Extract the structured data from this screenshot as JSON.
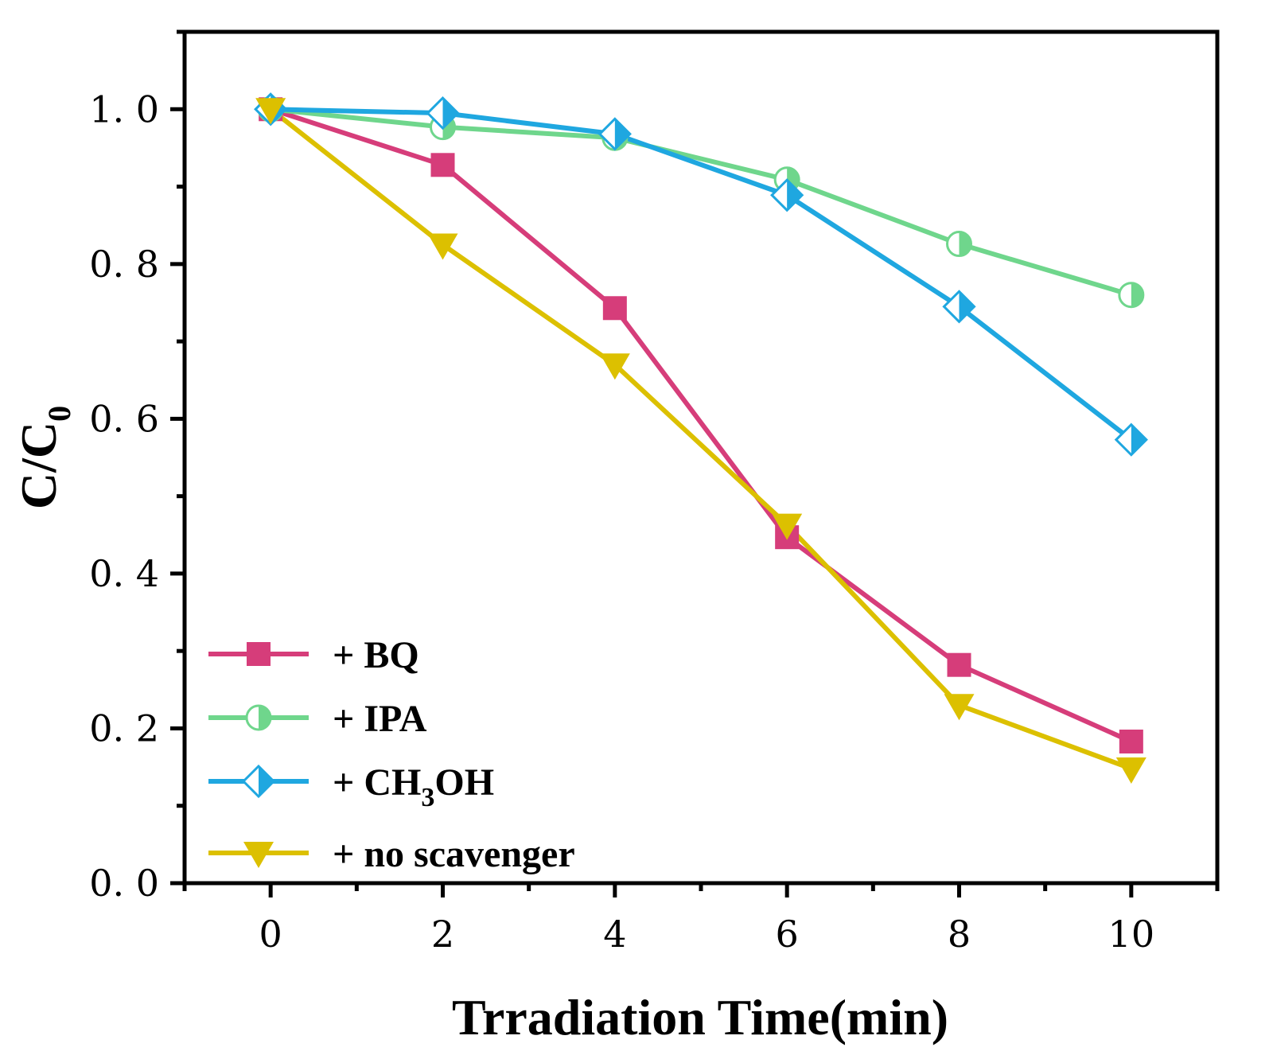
{
  "chart_data": {
    "type": "line",
    "xlabel": "Trradiation Time(min)",
    "ylabel_main": "C/C",
    "ylabel_sub": "0",
    "xlim": [
      -1,
      11
    ],
    "ylim": [
      0,
      1.1
    ],
    "xticks": [
      0,
      2,
      4,
      6,
      8,
      10
    ],
    "xtick_labels": [
      "0",
      "2",
      "4",
      "6",
      "8",
      "10"
    ],
    "yticks": [
      0.0,
      0.2,
      0.4,
      0.6,
      0.8,
      1.0
    ],
    "ytick_labels": [
      "0. 0",
      "0. 2",
      "0. 4",
      "0. 6",
      "0. 8",
      "1. 0"
    ],
    "legend_position": "bottom-left",
    "x": [
      0,
      2,
      4,
      6,
      8,
      10
    ],
    "series": [
      {
        "name": "+ BQ",
        "label_parts": [
          "+ BQ"
        ],
        "color": "#d63d7a",
        "marker": "square",
        "values": [
          1.0,
          0.928,
          0.743,
          0.447,
          0.282,
          0.183
        ]
      },
      {
        "name": "+ IPA",
        "label_parts": [
          "+ IPA"
        ],
        "color": "#6fd68c",
        "marker": "half-circle",
        "values": [
          1.0,
          0.977,
          0.963,
          0.909,
          0.826,
          0.76
        ]
      },
      {
        "name": "+ CH3OH",
        "label_parts": [
          "+ CH",
          "3",
          "OH"
        ],
        "color": "#1fa7e0",
        "marker": "half-diamond",
        "values": [
          1.0,
          0.995,
          0.968,
          0.889,
          0.745,
          0.573
        ]
      },
      {
        "name": "+ no scavenger",
        "label_parts": [
          "+ no scavenger"
        ],
        "color": "#dcc000",
        "marker": "triangle-down",
        "values": [
          1.0,
          0.825,
          0.67,
          0.463,
          0.23,
          0.148
        ]
      }
    ]
  }
}
